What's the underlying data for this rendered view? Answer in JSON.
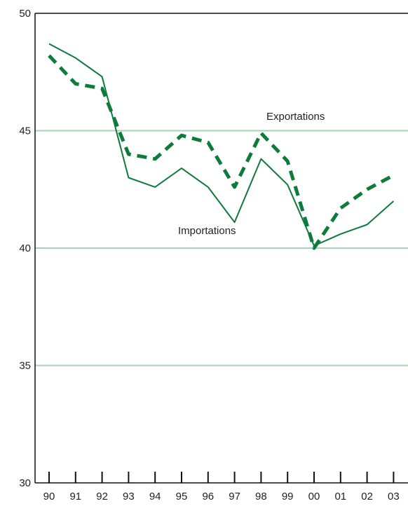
{
  "chart_data": {
    "type": "line",
    "title": "",
    "xlabel": "",
    "ylabel": "",
    "categories": [
      "90",
      "91",
      "92",
      "93",
      "94",
      "95",
      "96",
      "97",
      "98",
      "99",
      "00",
      "01",
      "02",
      "03"
    ],
    "ylim": [
      30,
      50
    ],
    "yticks": [
      30,
      35,
      40,
      45,
      50
    ],
    "grid": true,
    "series": [
      {
        "name": "Exportations",
        "style": "dashed",
        "color": "#0e7a3c",
        "values": [
          48.2,
          47.0,
          46.8,
          44.0,
          43.8,
          44.8,
          44.5,
          42.6,
          44.9,
          43.7,
          40.0,
          41.7,
          42.5,
          43.1
        ]
      },
      {
        "name": "Importations",
        "style": "solid",
        "color": "#0e7a3c",
        "values": [
          48.7,
          48.1,
          47.3,
          43.0,
          42.6,
          43.4,
          42.6,
          41.1,
          43.8,
          42.7,
          40.1,
          40.6,
          41.0,
          42.0
        ]
      }
    ],
    "annotations": {
      "exportations_label": "Exportations",
      "importations_label": "Importations"
    },
    "colors": {
      "axis": "#111111",
      "gridline": "#a8d3b4"
    }
  }
}
